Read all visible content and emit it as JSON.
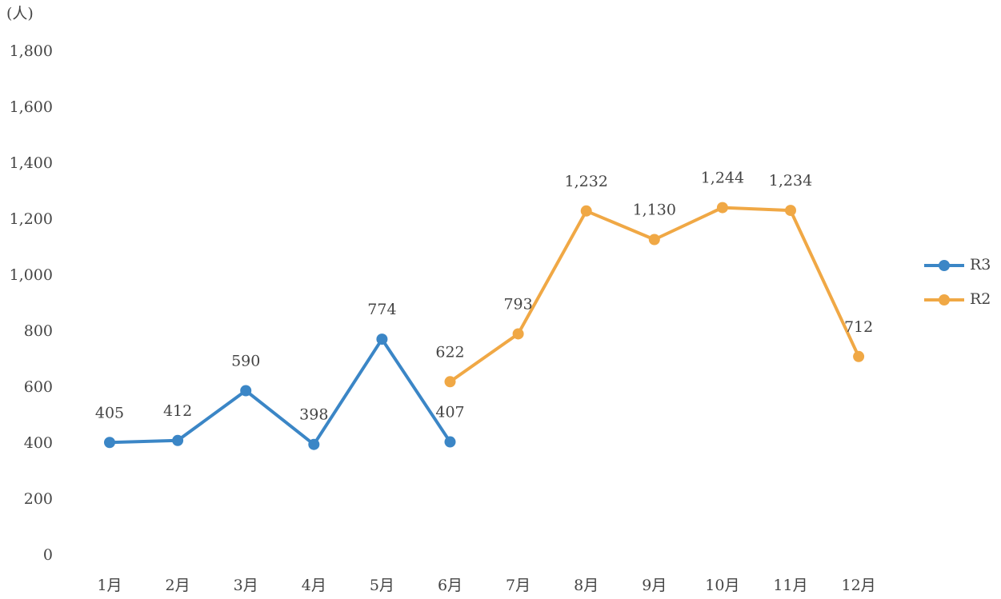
{
  "chart_data": {
    "type": "line",
    "y_unit": "(人)",
    "categories": [
      "1月",
      "2月",
      "3月",
      "4月",
      "5月",
      "6月",
      "7月",
      "8月",
      "9月",
      "10月",
      "11月",
      "12月"
    ],
    "series": [
      {
        "name": "R3",
        "color": "#3b86c6",
        "values": [
          405,
          412,
          590,
          398,
          774,
          407,
          null,
          null,
          null,
          null,
          null,
          null
        ],
        "value_labels": [
          "405",
          "412",
          "590",
          "398",
          "774",
          "407",
          null,
          null,
          null,
          null,
          null,
          null
        ]
      },
      {
        "name": "R2",
        "color": "#f0a845",
        "values": [
          null,
          null,
          null,
          null,
          null,
          622,
          793,
          1232,
          1130,
          1244,
          1234,
          712
        ],
        "value_labels": [
          null,
          null,
          null,
          null,
          null,
          "622",
          "793",
          "1,232",
          "1,130",
          "1,244",
          "1,234",
          "712"
        ]
      }
    ],
    "ylim": [
      0,
      1800
    ],
    "yticks": [
      0,
      200,
      400,
      600,
      800,
      {
        "value": 1000,
        "label": "1,000"
      },
      {
        "value": 1200,
        "label": "1,200"
      },
      {
        "value": 1400,
        "label": "1,400"
      },
      {
        "value": 1600,
        "label": "1,600"
      },
      {
        "value": 1800,
        "label": "1,800"
      }
    ],
    "legend": "right"
  }
}
